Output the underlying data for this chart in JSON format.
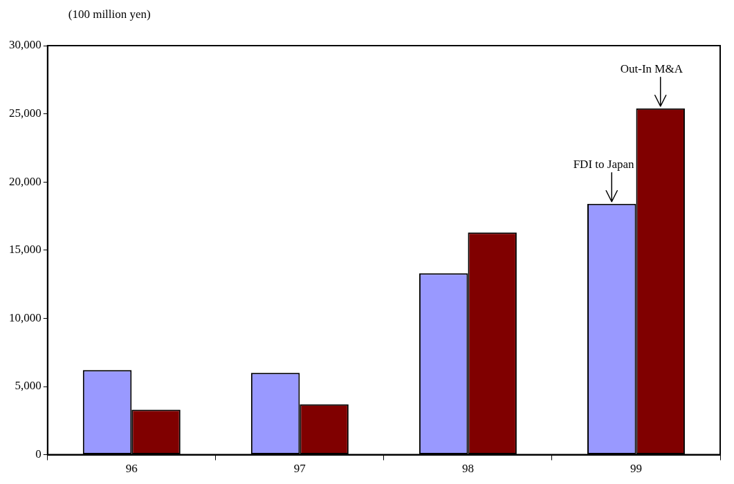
{
  "chart_data": {
    "type": "bar",
    "ylabel": "(100 million yen)",
    "categories": [
      "96",
      "97",
      "98",
      "99"
    ],
    "series": [
      {
        "color": "#9999ff",
        "values": [
          6200,
          6000,
          13300,
          18400
        ]
      },
      {
        "color": "#800000",
        "values": [
          3300,
          3700,
          16300,
          25400
        ]
      }
    ],
    "ylim": [
      0,
      30000
    ],
    "yticks": [
      0,
      {
        "value": 5000,
        "label": "5,000"
      },
      {
        "value": 10000,
        "label": "10,000"
      },
      {
        "value": 15000,
        "label": "15,000"
      },
      {
        "value": 20000,
        "label": "20,000"
      },
      {
        "value": 25000,
        "label": "25,000"
      },
      {
        "value": 30000,
        "label": "30,000"
      }
    ],
    "annotations": [
      {
        "text": "FDI to Japan",
        "x": "99",
        "y": 18400
      },
      {
        "text": "Out-In M&A",
        "x": "99",
        "y": 25400
      }
    ],
    "grid": false,
    "legend": false
  }
}
